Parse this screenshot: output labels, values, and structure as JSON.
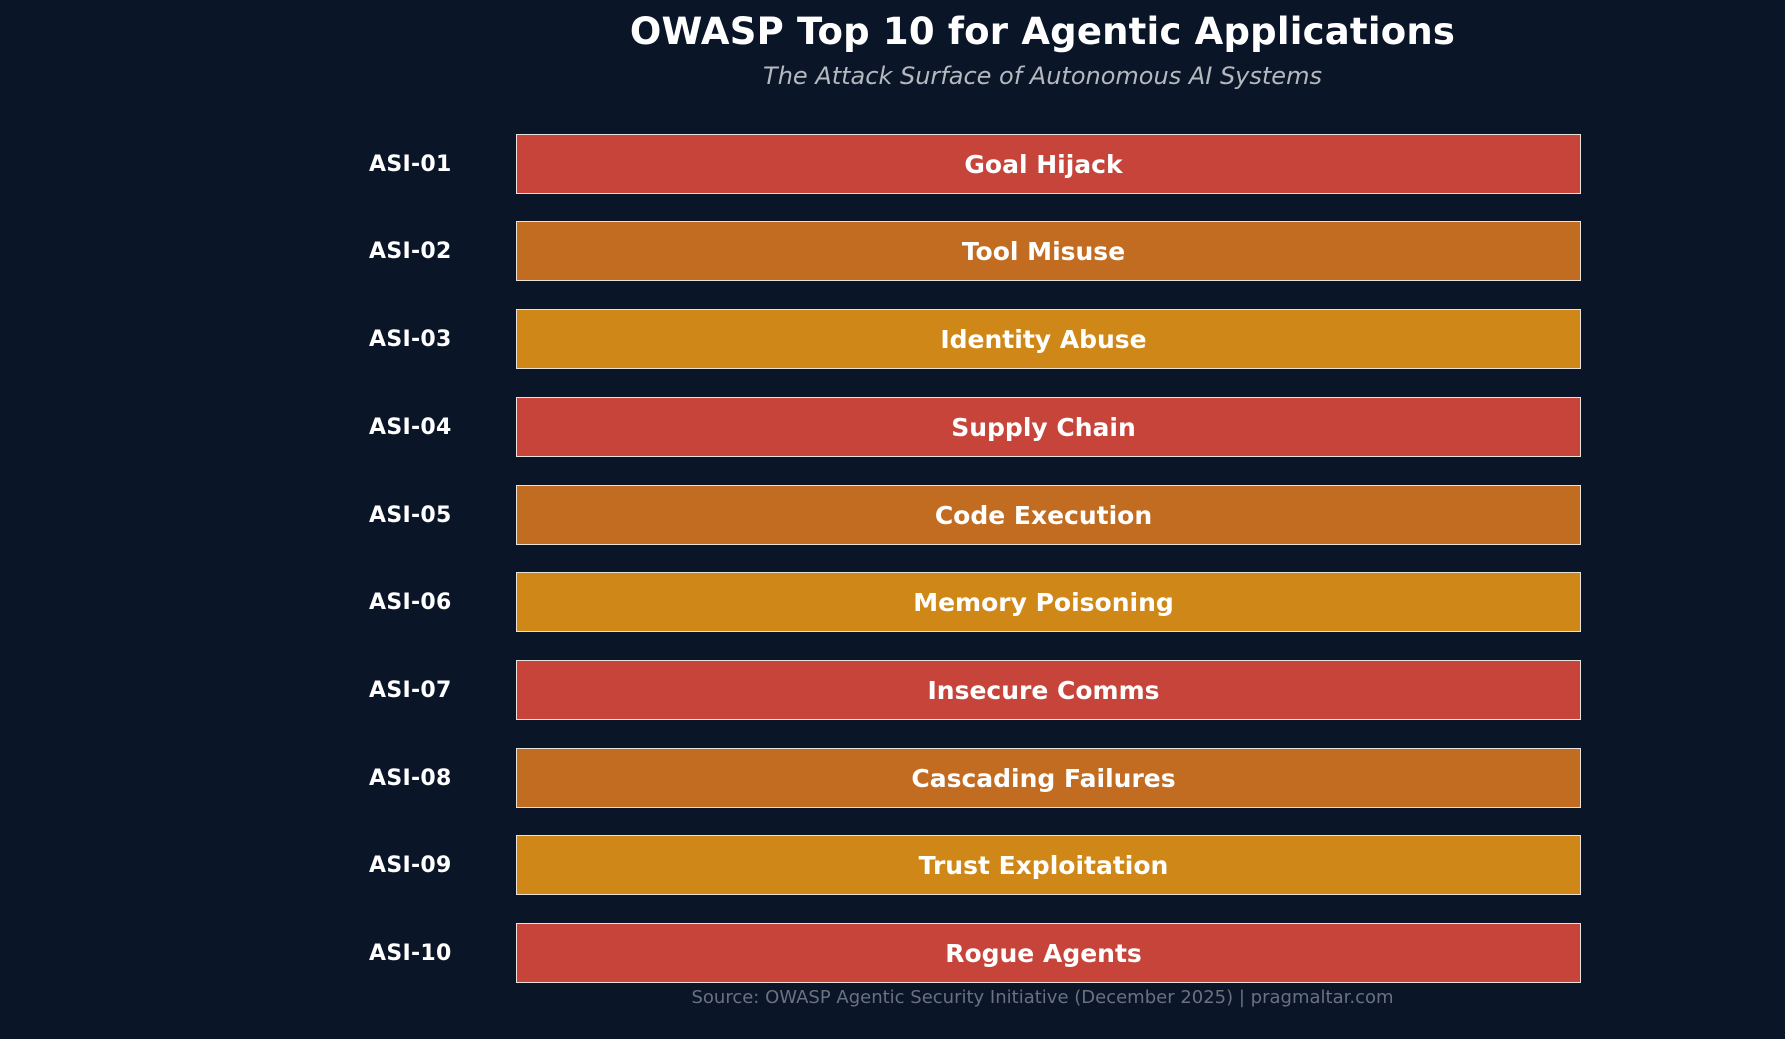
{
  "header": {
    "title": "OWASP Top 10 for Agentic Applications",
    "subtitle": "The Attack Surface of Autonomous AI Systems"
  },
  "colors": {
    "background": "#0b1528",
    "red": "#c6443a",
    "dark_orange": "#c26c22",
    "amber": "#cf8817"
  },
  "risks": [
    {
      "code": "ASI-01",
      "name": "Goal Hijack",
      "color": "#c6443a"
    },
    {
      "code": "ASI-02",
      "name": "Tool Misuse",
      "color": "#c26c22"
    },
    {
      "code": "ASI-03",
      "name": "Identity Abuse",
      "color": "#cf8817"
    },
    {
      "code": "ASI-04",
      "name": "Supply Chain",
      "color": "#c6443a"
    },
    {
      "code": "ASI-05",
      "name": "Code Execution",
      "color": "#c26c22"
    },
    {
      "code": "ASI-06",
      "name": "Memory Poisoning",
      "color": "#cf8817"
    },
    {
      "code": "ASI-07",
      "name": "Insecure Comms",
      "color": "#c6443a"
    },
    {
      "code": "ASI-08",
      "name": "Cascading Failures",
      "color": "#c26c22"
    },
    {
      "code": "ASI-09",
      "name": "Trust Exploitation",
      "color": "#cf8817"
    },
    {
      "code": "ASI-10",
      "name": "Rogue Agents",
      "color": "#c6443a"
    }
  ],
  "footer": {
    "source": "Source: OWASP Agentic Security Initiative (December 2025)  |  pragmaltar.com"
  }
}
